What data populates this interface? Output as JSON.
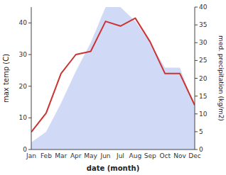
{
  "chart_data": {
    "type": "line",
    "xlabel": "date (month)",
    "ylabel": "max temp (C)",
    "y2label": "med. precipitation (kg/m2)",
    "categories": [
      "Jan",
      "Feb",
      "Mar",
      "Apr",
      "May",
      "Jun",
      "Jul",
      "Aug",
      "Sep",
      "Oct",
      "Nov",
      "Dec"
    ],
    "series": [
      {
        "type": "area",
        "axis": "y2",
        "color": "#aabbee",
        "values": [
          2,
          5,
          13,
          22,
          30,
          40,
          40,
          36,
          30,
          23,
          23,
          12
        ]
      },
      {
        "type": "line",
        "color": "#cc3333",
        "values": [
          5.5,
          11.5,
          24,
          30,
          31,
          40.5,
          39,
          41.5,
          34,
          24,
          24,
          14
        ]
      }
    ],
    "ylim": [
      0,
      45
    ],
    "yticks": [
      0,
      10,
      20,
      30,
      40
    ],
    "y2lim": [
      0,
      40
    ],
    "y2ticks": [
      0,
      5,
      10,
      15,
      20,
      25,
      30,
      35,
      40
    ],
    "grid": false
  }
}
